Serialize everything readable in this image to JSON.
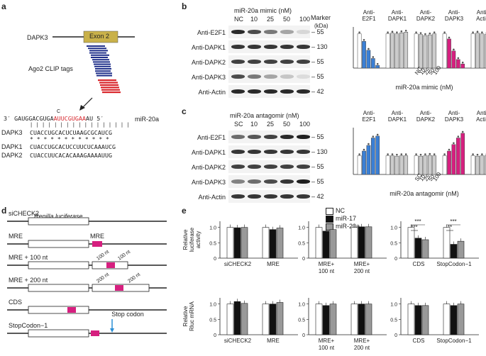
{
  "colors": {
    "nc": "#ffffff",
    "mir17": "#111111",
    "mir20a": "#999999",
    "blue": "#3a7fd5",
    "magenta": "#d61f7f",
    "grey": "#c8c8c8",
    "clip_blue": "#1f2f8a",
    "clip_red": "#d9262c",
    "exon": "#c9b14a"
  },
  "panel_a": {
    "letter": "a",
    "gene": "DAPK3",
    "exon": "Exon 2",
    "clip_label": "Ago2 CLIP tags",
    "mir_prefix": "3′",
    "mir_seq_black": "GAUGGACGUGA",
    "mir_bulge": "C",
    "mir_seq_red": "AUUCGUGAA",
    "mir_seq_tail": "AU",
    "mir_suffix": "5′",
    "mir_name": "miR-20a",
    "pair_marks": "| | | | | | | |  | | | | | | | | |",
    "dapk3_name": "DAPK3",
    "dapk3_seq": "CUACCUGCACUCUAAGCGCAUCG",
    "stars": "* * * * * *   * * *     *           * *",
    "dapk1_name": "DAPK1",
    "dapk1_seq": "CUACCUGCACUCCUUCUCAAAUCG",
    "dapk2_name": "DAPK2",
    "dapk2_seq": "CUACCUUCACACAAAGAAAAUUG"
  },
  "panel_b": {
    "letter": "b",
    "title": "miR-20a mimic (nM)",
    "marker": "Marker",
    "kda": "(kDa)",
    "lanes": [
      "NC",
      "10",
      "25",
      "50",
      "100"
    ],
    "rows": [
      {
        "label": "Anti-E2F1",
        "kda": "55"
      },
      {
        "label": "Anti-DAPK1",
        "kda": "130"
      },
      {
        "label": "Anti-DAPK2",
        "kda": "55"
      },
      {
        "label": "Anti-DAPK3",
        "kda": "55"
      },
      {
        "label": "Anti-Actin",
        "kda": "42"
      }
    ],
    "xlabel": "miR-20a mimic (nM)",
    "tick_labels": [
      "NC",
      "10",
      "25",
      "50",
      "100"
    ]
  },
  "panel_c": {
    "letter": "c",
    "title": "miR-20a antagomir (nM)",
    "lanes": [
      "SC",
      "10",
      "25",
      "50",
      "100"
    ],
    "rows": [
      {
        "label": "Anti-E2F1",
        "kda": "55"
      },
      {
        "label": "Anti-DAPK1",
        "kda": "130"
      },
      {
        "label": "Anti-DAPK2",
        "kda": "55"
      },
      {
        "label": "Anti-DAPK3",
        "kda": "55"
      },
      {
        "label": "Anti-Actin",
        "kda": "42"
      }
    ],
    "xlabel": "miR-20a antagomir (nM)",
    "tick_labels": [
      "SC",
      "10",
      "25",
      "50",
      "100"
    ]
  },
  "panel_d": {
    "letter": "d",
    "rows": [
      "siCHECK2",
      "MRE",
      "MRE + 100 nt",
      "MRE + 200 nt",
      "CDS",
      "StopCodon−1"
    ],
    "renilla": "Renilla luciferase",
    "mre_tag": "MRE",
    "nt100": "100 nt",
    "nt200": "200 nt",
    "stop": "Stop codon"
  },
  "panel_e": {
    "letter": "e",
    "legend": [
      "NC",
      "miR-17",
      "miR-20a"
    ],
    "ylabel_top": "Relative luciferase activity",
    "ylabel_bottom": "Relative Rluc mRNA",
    "ticks": [
      "0",
      "0.5",
      "1.0"
    ],
    "sig_labels": [
      "***",
      "***",
      "***",
      "**"
    ]
  },
  "chart_data": [
    {
      "type": "bar",
      "panel": "b",
      "xlabel": "miR-20a mimic (nM)",
      "categories": [
        "NC",
        "10",
        "25",
        "50",
        "100"
      ],
      "ylim": [
        0,
        1.2
      ],
      "series": [
        {
          "name": "Anti-E2F1",
          "values": [
            1.0,
            0.78,
            0.52,
            0.28,
            0.08
          ]
        },
        {
          "name": "Anti-DAPK1",
          "values": [
            1.0,
            1.02,
            1.0,
            1.03,
            1.05
          ]
        },
        {
          "name": "Anti-DAPK2",
          "values": [
            1.0,
            0.98,
            0.95,
            0.97,
            1.0
          ]
        },
        {
          "name": "Anti-DAPK3",
          "values": [
            1.0,
            0.85,
            0.5,
            0.25,
            0.12
          ]
        },
        {
          "name": "Anti-Actin",
          "values": [
            1.0,
            1.02,
            1.0,
            0.98,
            0.95
          ]
        }
      ]
    },
    {
      "type": "bar",
      "panel": "c",
      "xlabel": "miR-20a antagomir (nM)",
      "categories": [
        "SC",
        "10",
        "25",
        "50",
        "100"
      ],
      "ylim": [
        0,
        2.5
      ],
      "series": [
        {
          "name": "Anti-E2F1",
          "values": [
            1.0,
            1.25,
            1.55,
            1.95,
            2.05
          ]
        },
        {
          "name": "Anti-DAPK1",
          "values": [
            1.0,
            1.0,
            0.98,
            1.0,
            1.0
          ]
        },
        {
          "name": "Anti-DAPK2",
          "values": [
            1.0,
            0.98,
            1.0,
            1.02,
            1.0
          ]
        },
        {
          "name": "Anti-DAPK3",
          "values": [
            1.0,
            1.25,
            1.6,
            1.95,
            2.2
          ]
        },
        {
          "name": "Anti-Actin",
          "values": [
            1.0,
            0.98,
            1.0,
            1.0,
            1.0
          ]
        }
      ]
    },
    {
      "type": "bar",
      "panel": "e-top",
      "ylabel": "Relative luciferase activity",
      "ylim": [
        0,
        1.2
      ],
      "groups": [
        {
          "categories": [
            "siCHECK2",
            "MRE"
          ],
          "series": [
            {
              "name": "NC",
              "values": [
                1.0,
                1.0
              ]
            },
            {
              "name": "miR-17",
              "values": [
                0.99,
                0.93
              ]
            },
            {
              "name": "miR-20a",
              "values": [
                1.0,
                0.98
              ]
            }
          ]
        },
        {
          "categories": [
            "MRE+ 100 nt",
            "MRE+ 200 nt"
          ],
          "series": [
            {
              "name": "NC",
              "values": [
                1.0,
                1.0
              ]
            },
            {
              "name": "miR-17",
              "values": [
                0.88,
                1.02
              ]
            },
            {
              "name": "miR-20a",
              "values": [
                0.93,
                1.02
              ]
            }
          ]
        },
        {
          "categories": [
            "CDS",
            "StopCodon−1"
          ],
          "series": [
            {
              "name": "NC",
              "values": [
                1.0,
                1.0
              ]
            },
            {
              "name": "miR-17",
              "values": [
                0.65,
                0.45
              ]
            },
            {
              "name": "miR-20a",
              "values": [
                0.6,
                0.55
              ]
            }
          ]
        }
      ]
    },
    {
      "type": "bar",
      "panel": "e-bottom",
      "ylabel": "Relative Rluc mRNA",
      "ylim": [
        0,
        1.2
      ],
      "groups": [
        {
          "categories": [
            "siCHECK2",
            "MRE"
          ],
          "series": [
            {
              "name": "NC",
              "values": [
                1.0,
                1.0
              ]
            },
            {
              "name": "miR-17",
              "values": [
                1.08,
                1.0
              ]
            },
            {
              "name": "miR-20a",
              "values": [
                1.02,
                1.05
              ]
            }
          ]
        },
        {
          "categories": [
            "MRE+ 100 nt",
            "MRE+ 200 nt"
          ],
          "series": [
            {
              "name": "NC",
              "values": [
                1.0,
                1.0
              ]
            },
            {
              "name": "miR-17",
              "values": [
                0.95,
                1.0
              ]
            },
            {
              "name": "miR-20a",
              "values": [
                1.0,
                1.0
              ]
            }
          ]
        },
        {
          "categories": [
            "CDS",
            "StopCodon−1"
          ],
          "series": [
            {
              "name": "NC",
              "values": [
                1.0,
                1.0
              ]
            },
            {
              "name": "miR-17",
              "values": [
                0.95,
                0.95
              ]
            },
            {
              "name": "miR-20a",
              "values": [
                0.95,
                1.0
              ]
            }
          ]
        }
      ]
    }
  ]
}
